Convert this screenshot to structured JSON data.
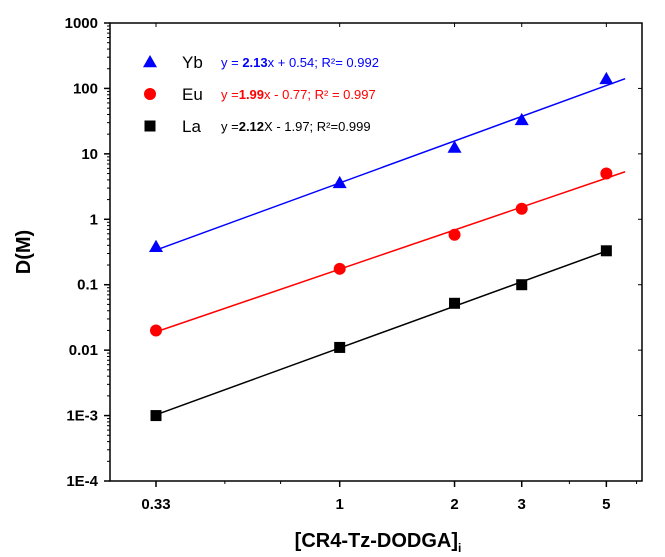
{
  "chart_data": {
    "type": "scatter",
    "xscale": "log",
    "yscale": "log",
    "xlabel": "[CR4-Tz-DODGA]",
    "xlabel_subscript": "i",
    "ylabel": "D(M)",
    "xlim": [
      0.25,
      6.2
    ],
    "ylim": [
      0.0001,
      1000
    ],
    "xticks": [
      0.33,
      1,
      2,
      3,
      5
    ],
    "xtick_labels": [
      "0.33",
      "1",
      "2",
      "3",
      "5"
    ],
    "yticks": [
      0.0001,
      0.001,
      0.01,
      0.1,
      1,
      10,
      100,
      1000
    ],
    "ytick_labels": [
      "1E-4",
      "1E-3",
      "0.01",
      "0.1",
      "1",
      "10",
      "100",
      "1000"
    ],
    "legend_position": "top-left",
    "series": [
      {
        "name": "Yb",
        "marker": "triangle",
        "color": "#0000ff",
        "x": [
          0.33,
          1,
          2,
          3,
          5
        ],
        "y": [
          0.38,
          3.6,
          12.5,
          33,
          140
        ],
        "fit": {
          "slope": 2.13,
          "intercept": 0.54,
          "x_range": [
            0.33,
            5.6
          ]
        },
        "equation": {
          "pre": "y = ",
          "slope": "2.13",
          "post": "x + 0.54;  R²= 0.992"
        }
      },
      {
        "name": "Eu",
        "marker": "circle",
        "color": "#ff0000",
        "x": [
          0.33,
          1,
          2,
          3,
          5
        ],
        "y": [
          0.02,
          0.175,
          0.58,
          1.45,
          5.0
        ],
        "fit": {
          "slope": 1.99,
          "intercept": -0.77,
          "x_range": [
            0.33,
            5.6
          ]
        },
        "equation": {
          "pre": "y =",
          "slope": "1.99",
          "post": "x - 0.77; R² = 0.997"
        }
      },
      {
        "name": "La",
        "marker": "square",
        "color": "#000000",
        "x": [
          0.33,
          1,
          2,
          3,
          5
        ],
        "y": [
          0.001,
          0.011,
          0.052,
          0.1,
          0.33
        ],
        "fit": {
          "slope": 2.12,
          "intercept": -1.97,
          "x_range": [
            0.33,
            5
          ]
        },
        "equation": {
          "pre": "y =",
          "slope": "2.12",
          "post": "X - 1.97; R²=0.999"
        }
      }
    ]
  }
}
